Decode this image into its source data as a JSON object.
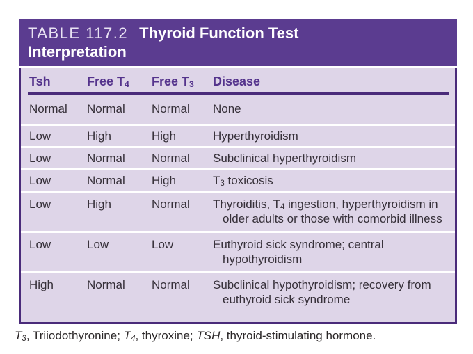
{
  "table": {
    "label": "TABLE 117.2",
    "title_line1": "Thyroid Function Test",
    "title_line2": "Interpretation",
    "columns": [
      [
        {
          "text": "Tsh"
        }
      ],
      [
        {
          "text": "Free T"
        },
        {
          "text": "4",
          "sub": true
        }
      ],
      [
        {
          "text": "Free T"
        },
        {
          "text": "3",
          "sub": true
        }
      ],
      [
        {
          "text": "Disease"
        }
      ]
    ],
    "rows": [
      {
        "tsh": "Normal",
        "t4": "Normal",
        "t3": "Normal",
        "disease": [
          {
            "text": "None"
          }
        ]
      },
      {
        "tsh": "Low",
        "t4": "High",
        "t3": "High",
        "disease": [
          {
            "text": "Hyperthyroidism"
          }
        ]
      },
      {
        "tsh": "Low",
        "t4": "Normal",
        "t3": "Normal",
        "disease": [
          {
            "text": "Subclinical hyperthyroidism"
          }
        ]
      },
      {
        "tsh": "Low",
        "t4": "Normal",
        "t3": "High",
        "disease": [
          {
            "text": "T"
          },
          {
            "text": "3",
            "sub": true
          },
          {
            "text": " toxicosis"
          }
        ]
      },
      {
        "tsh": "Low",
        "t4": "High",
        "t3": "Normal",
        "disease": [
          {
            "text": "Thyroiditis, T"
          },
          {
            "text": "4",
            "sub": true
          },
          {
            "text": " ingestion, hyperthyroidism in"
          },
          {
            "br": true
          },
          {
            "text": "older adults or those with comorbid illness",
            "indent": true
          }
        ]
      },
      {
        "tsh": "Low",
        "t4": "Low",
        "t3": "Low",
        "disease": [
          {
            "text": "Euthyroid sick syndrome; central"
          },
          {
            "br": true
          },
          {
            "text": "hypothyroidism",
            "indent": true
          }
        ]
      },
      {
        "tsh": "High",
        "t4": "Normal",
        "t3": "Normal",
        "disease": [
          {
            "text": "Subclinical hypothyroidism; recovery from"
          },
          {
            "br": true
          },
          {
            "text": "euthyroid sick syndrome",
            "indent": true
          }
        ]
      }
    ],
    "footnote": [
      {
        "text": "T",
        "italic": true
      },
      {
        "text": "3",
        "sub": true,
        "italic": true
      },
      {
        "text": ", Triiodothyronine; "
      },
      {
        "text": "T",
        "italic": true
      },
      {
        "text": "4",
        "sub": true,
        "italic": true
      },
      {
        "text": ", thyroxine; "
      },
      {
        "text": "TSH",
        "italic": true
      },
      {
        "text": ", thyroid-stimulating hormone."
      }
    ],
    "colors": {
      "header_bg": "#5b3c90",
      "body_bg": "#ded5e8",
      "rule": "#4a2b7a",
      "header_text": "#54338c",
      "cell_text": "#363039",
      "footnote_text": "#2b2728",
      "separator": "#ffffff",
      "title_text": "#ffffff",
      "label_text": "#e9e3f3",
      "page_bg": "#ffffff"
    }
  }
}
